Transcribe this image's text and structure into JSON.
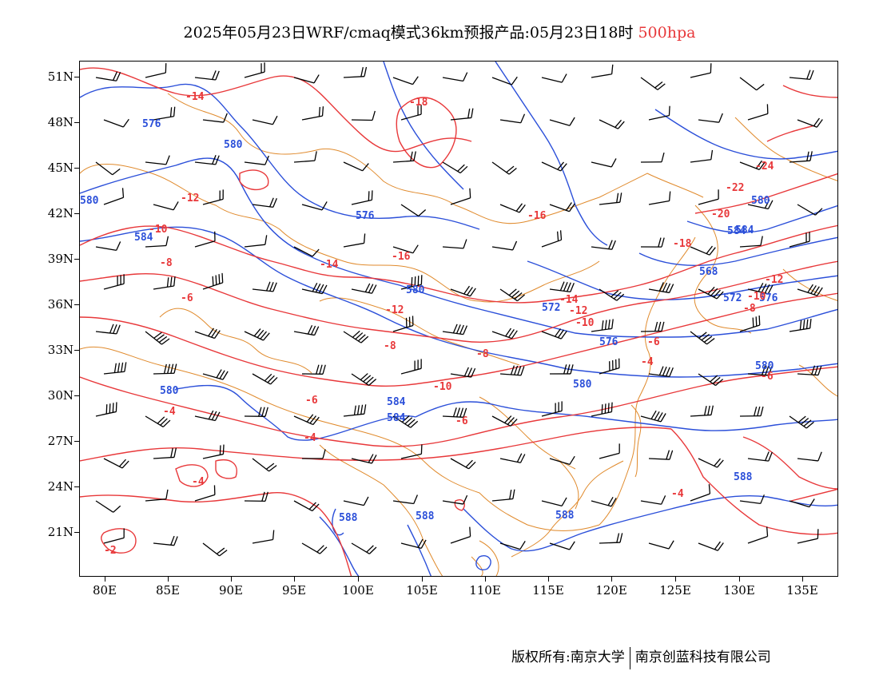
{
  "title": {
    "text": "2025年05月23日WRF/cmaq模式36km预报产品:05月23日18时",
    "level": "500hpa"
  },
  "colors": {
    "height_contour": "#2b4fd9",
    "temp_contour": "#e8383a",
    "coastline": "#e08a2c",
    "wind_barb": "#000000"
  },
  "axes": {
    "lat_labels": [
      "51N",
      "48N",
      "45N",
      "42N",
      "39N",
      "36N",
      "33N",
      "30N",
      "27N",
      "24N",
      "21N"
    ],
    "lon_labels": [
      "80E",
      "85E",
      "90E",
      "95E",
      "100E",
      "105E",
      "110E",
      "115E",
      "120E",
      "125E",
      "130E",
      "135E"
    ]
  },
  "height_labels": [
    "576",
    "580",
    "580",
    "576",
    "584",
    "580",
    "572",
    "576",
    "580",
    "584",
    "580",
    "584",
    "588",
    "584",
    "580",
    "588",
    "588",
    "568",
    "572",
    "576",
    "580",
    "584",
    "588"
  ],
  "temp_labels": [
    "-14",
    "-18",
    "-12",
    "-10",
    "-8",
    "-6",
    "-14",
    "-16",
    "-12",
    "-8",
    "-6",
    "-10",
    "-8",
    "-4",
    "-4",
    "-4",
    "-2",
    "-16",
    "-18",
    "-20",
    "-22",
    "-24",
    "-12",
    "-10",
    "-8",
    "-6",
    "-4",
    "-6",
    "-4",
    "-14",
    "-12",
    "-10",
    "-6"
  ],
  "footer": {
    "left": "版权所有:南京大学",
    "right": "南京创蓝科技有限公司"
  }
}
